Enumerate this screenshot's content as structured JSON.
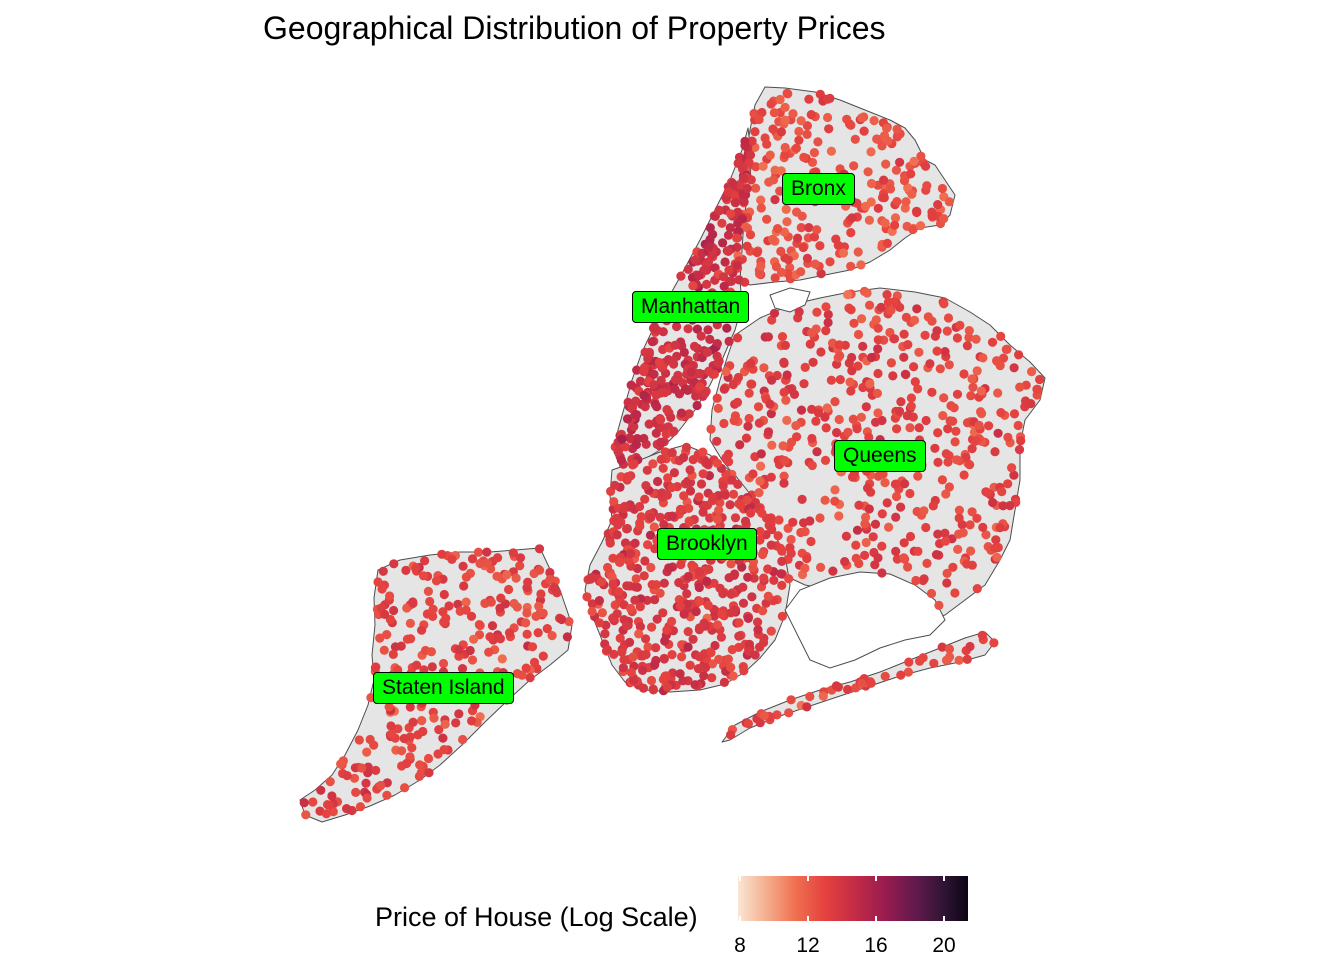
{
  "title": "Geographical Distribution of Property Prices",
  "boroughs": [
    {
      "key": "bronx",
      "label": "Bronx"
    },
    {
      "key": "manhattan",
      "label": "Manhattan"
    },
    {
      "key": "queens",
      "label": "Queens"
    },
    {
      "key": "brooklyn",
      "label": "Brooklyn"
    },
    {
      "key": "staten_island",
      "label": "Staten Island"
    }
  ],
  "legend": {
    "title": "Price of House (Log Scale)",
    "ticks": [
      "8",
      "12",
      "16",
      "20"
    ],
    "range": [
      8,
      21.5
    ],
    "colors": [
      "#fae6d4",
      "#f5b090",
      "#f07050",
      "#e4413f",
      "#c02a47",
      "#951b4f",
      "#5e1a4d",
      "#2e1433",
      "#0b0414"
    ]
  },
  "chart_data": {
    "type": "scatter",
    "title": "Geographical Distribution of Property Prices",
    "color_variable": "Price of House (Log Scale)",
    "color_range": [
      8,
      21.5
    ],
    "labels": [
      "Bronx",
      "Manhattan",
      "Queens",
      "Brooklyn",
      "Staten Island"
    ],
    "typical_value_by_borough": {
      "Bronx": 12.6,
      "Manhattan": 14.2,
      "Queens": 13.0,
      "Brooklyn": 13.5,
      "Staten Island": 13.0
    }
  }
}
